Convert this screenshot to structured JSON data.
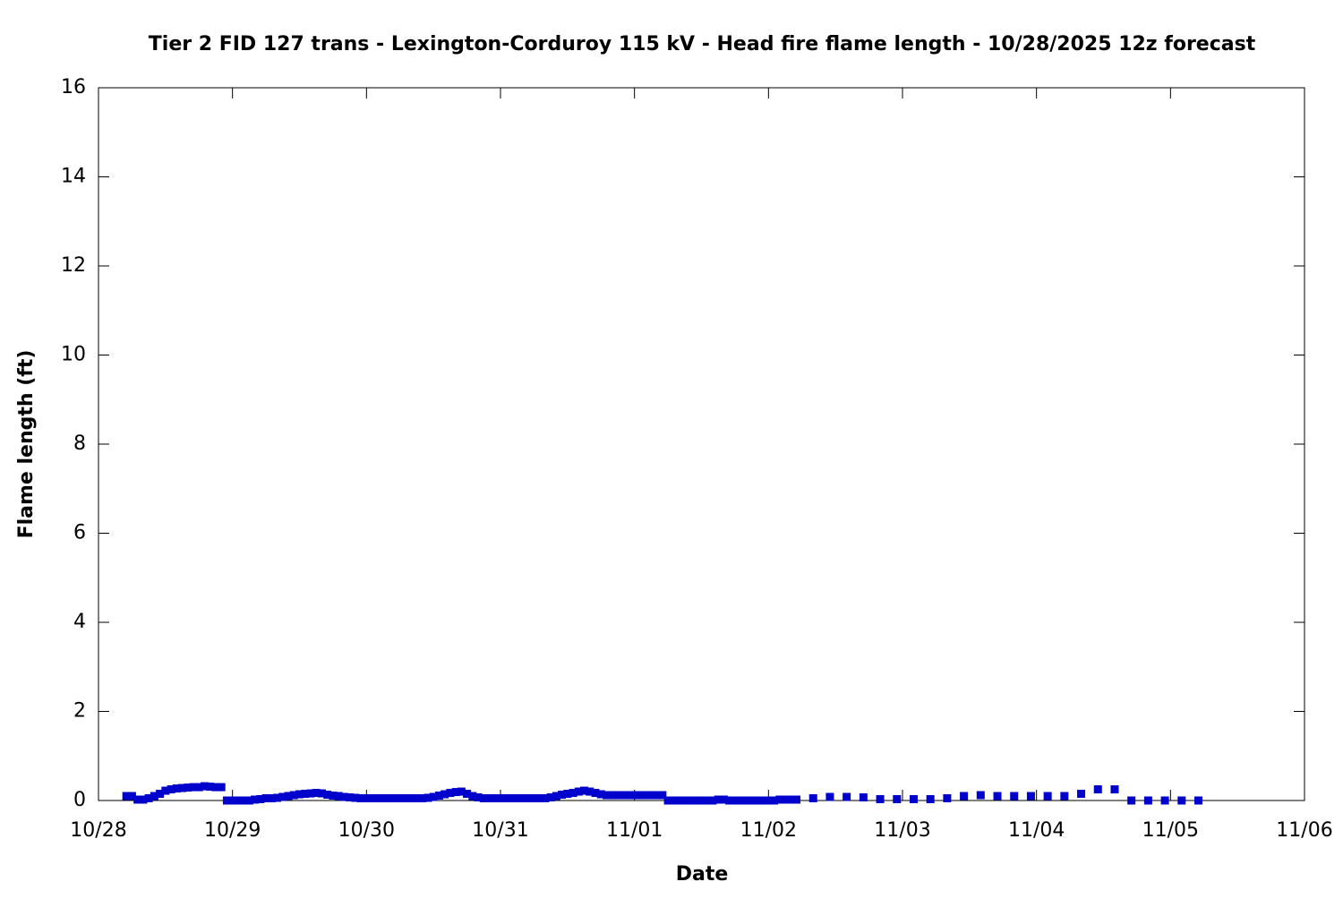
{
  "chart_data": {
    "type": "scatter",
    "title": "Tier 2 FID 127 trans - Lexington-Corduroy 115 kV - Head fire flame length - 10/28/2025 12z forecast",
    "x_label": "Date",
    "y_label": "Flame length (ft)",
    "xlim": [
      0,
      216
    ],
    "xticks": [
      {
        "value": 0,
        "label": "10/28"
      },
      {
        "value": 24,
        "label": "10/29"
      },
      {
        "value": 48,
        "label": "10/30"
      },
      {
        "value": 72,
        "label": "10/31"
      },
      {
        "value": 96,
        "label": "11/01"
      },
      {
        "value": 120,
        "label": "11/02"
      },
      {
        "value": 144,
        "label": "11/03"
      },
      {
        "value": 168,
        "label": "11/04"
      },
      {
        "value": 192,
        "label": "11/05"
      },
      {
        "value": 216,
        "label": "11/06"
      }
    ],
    "ylim": [
      0,
      16
    ],
    "yticks": [
      0,
      2,
      4,
      6,
      8,
      10,
      12,
      14,
      16
    ],
    "marker": "square",
    "series": [
      {
        "color": "#0000cc",
        "x": [
          5,
          6,
          7,
          8,
          9,
          10,
          11,
          12,
          13,
          14,
          15,
          16,
          17,
          18,
          19,
          20,
          21,
          22,
          23,
          24,
          25,
          26,
          27,
          28,
          29,
          30,
          31,
          32,
          33,
          34,
          35,
          36,
          37,
          38,
          39,
          40,
          41,
          42,
          43,
          44,
          45,
          46,
          47,
          48,
          49,
          50,
          51,
          52,
          53,
          54,
          55,
          56,
          57,
          58,
          59,
          60,
          61,
          62,
          63,
          64,
          65,
          66,
          67,
          68,
          69,
          70,
          71,
          72,
          73,
          74,
          75,
          76,
          77,
          78,
          79,
          80,
          81,
          82,
          83,
          84,
          85,
          86,
          87,
          88,
          89,
          90,
          91,
          92,
          93,
          94,
          95,
          96,
          97,
          98,
          99,
          100,
          101,
          102,
          103,
          104,
          105,
          106,
          107,
          108,
          109,
          110,
          111,
          112,
          113,
          114,
          115,
          116,
          117,
          118,
          119,
          120,
          121,
          122,
          123,
          124,
          125,
          128,
          131,
          134,
          137,
          140,
          143,
          146,
          149,
          152,
          155,
          158,
          161,
          164,
          167,
          170,
          173,
          176,
          179,
          182,
          185,
          188,
          191,
          194,
          197
        ],
        "values": [
          0.1,
          0.1,
          0.02,
          0.02,
          0.05,
          0.1,
          0.15,
          0.22,
          0.25,
          0.27,
          0.28,
          0.29,
          0.3,
          0.3,
          0.32,
          0.31,
          0.3,
          0.3,
          0,
          0,
          0,
          0,
          0,
          0.02,
          0.03,
          0.05,
          0.05,
          0.06,
          0.08,
          0.1,
          0.12,
          0.14,
          0.15,
          0.16,
          0.17,
          0.16,
          0.13,
          0.11,
          0.1,
          0.08,
          0.07,
          0.06,
          0.05,
          0.05,
          0.05,
          0.05,
          0.05,
          0.05,
          0.05,
          0.05,
          0.05,
          0.05,
          0.05,
          0.05,
          0.06,
          0.08,
          0.11,
          0.14,
          0.17,
          0.19,
          0.2,
          0.15,
          0.1,
          0.07,
          0.05,
          0.05,
          0.05,
          0.05,
          0.05,
          0.05,
          0.05,
          0.05,
          0.05,
          0.05,
          0.05,
          0.05,
          0.07,
          0.1,
          0.13,
          0.15,
          0.17,
          0.2,
          0.22,
          0.2,
          0.17,
          0.14,
          0.12,
          0.12,
          0.12,
          0.12,
          0.12,
          0.12,
          0.12,
          0.12,
          0.12,
          0.12,
          0.12,
          0,
          0,
          0,
          0,
          0,
          0,
          0,
          0,
          0,
          0.02,
          0.02,
          0,
          0,
          0,
          0,
          0,
          0,
          0,
          0,
          0,
          0.02,
          0.02,
          0.02,
          0.02,
          0.05,
          0.08,
          0.08,
          0.07,
          0.03,
          0.03,
          0.03,
          0.03,
          0.05,
          0.1,
          0.12,
          0.1,
          0.1,
          0.1,
          0.1,
          0.1,
          0.15,
          0.25,
          0.25,
          0,
          0,
          0,
          0,
          0
        ]
      }
    ]
  }
}
